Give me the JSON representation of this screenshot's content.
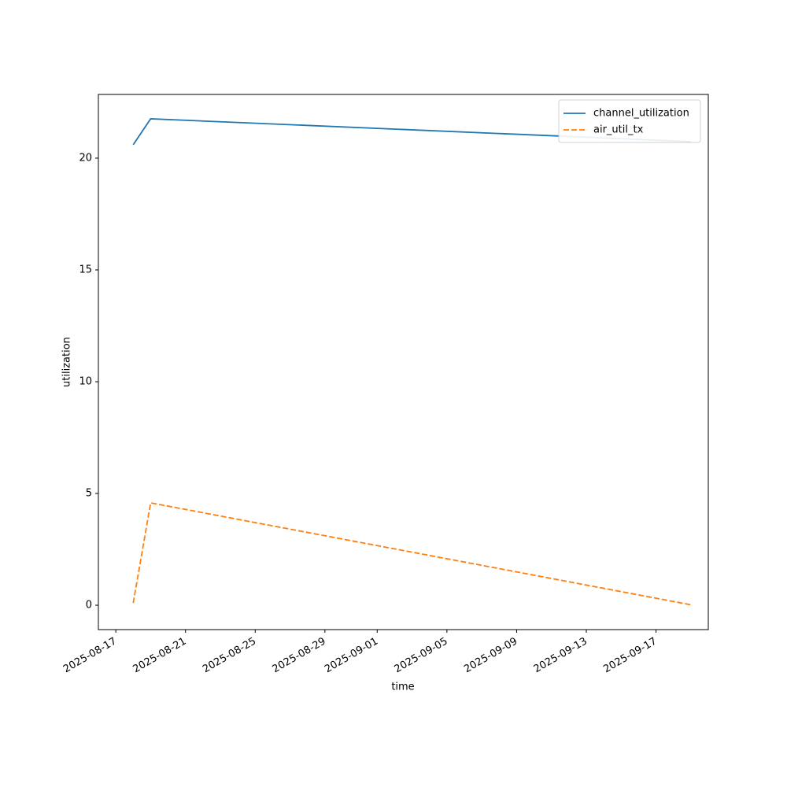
{
  "chart_data": {
    "type": "line",
    "x_label": "time",
    "y_label": "utilization",
    "x": [
      "2025-08-18",
      "2025-08-19",
      "2025-09-19"
    ],
    "series": [
      {
        "name": "channel_utilization",
        "color": "#1f77b4",
        "linestyle": "solid",
        "values": [
          20.6,
          21.76,
          20.74
        ]
      },
      {
        "name": "air_util_tx",
        "color": "#ff7f0e",
        "linestyle": "dashed",
        "values": [
          0.1,
          4.58,
          0.02
        ]
      }
    ],
    "xlim": [
      "2025-08-16",
      "2025-09-20"
    ],
    "xticks": [
      "2025-08-17",
      "2025-08-21",
      "2025-08-25",
      "2025-08-29",
      "2025-09-01",
      "2025-09-05",
      "2025-09-09",
      "2025-09-13",
      "2025-09-17"
    ],
    "ylim": [
      -1.09,
      22.85
    ],
    "yticks": [
      0,
      5,
      10,
      15,
      20
    ],
    "grid": false,
    "legend": "upper right"
  }
}
